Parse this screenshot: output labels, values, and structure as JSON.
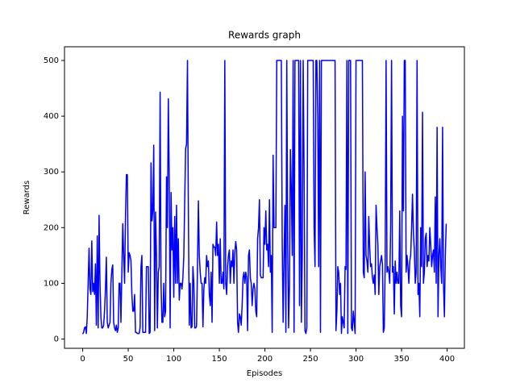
{
  "chart_data": {
    "type": "line",
    "title": "Rewards graph",
    "x_label": "Episodes",
    "y_label": "Rewards",
    "color": "#0000ff",
    "xlim": [
      -19.95,
      418.95
    ],
    "ylim": [
      -16.6,
      524.6
    ],
    "xticks": [
      0,
      50,
      100,
      150,
      200,
      250,
      300,
      350,
      400
    ],
    "yticks": [
      0,
      100,
      200,
      300,
      400,
      500
    ],
    "x": [
      0,
      1,
      2,
      3,
      4,
      5,
      6,
      7,
      8,
      9,
      10,
      11,
      12,
      13,
      14,
      15,
      16,
      17,
      18,
      19,
      20,
      21,
      22,
      23,
      24,
      25,
      26,
      27,
      28,
      29,
      30,
      31,
      32,
      33,
      34,
      35,
      36,
      37,
      38,
      39,
      40,
      41,
      42,
      43,
      44,
      45,
      46,
      47,
      48,
      49,
      50,
      51,
      52,
      53,
      54,
      55,
      56,
      57,
      58,
      59,
      60,
      61,
      62,
      63,
      64,
      65,
      66,
      67,
      68,
      69,
      70,
      71,
      72,
      73,
      74,
      75,
      76,
      77,
      78,
      79,
      80,
      81,
      82,
      83,
      84,
      85,
      86,
      87,
      88,
      89,
      90,
      91,
      92,
      93,
      94,
      95,
      96,
      97,
      98,
      99,
      100,
      101,
      102,
      103,
      104,
      105,
      106,
      107,
      108,
      109,
      110,
      111,
      112,
      113,
      114,
      115,
      116,
      117,
      118,
      119,
      120,
      121,
      122,
      123,
      124,
      125,
      126,
      127,
      128,
      129,
      130,
      131,
      132,
      133,
      134,
      135,
      136,
      137,
      138,
      139,
      140,
      141,
      142,
      143,
      144,
      145,
      146,
      147,
      148,
      149,
      150,
      151,
      152,
      153,
      154,
      155,
      156,
      157,
      158,
      159,
      160,
      161,
      162,
      163,
      164,
      165,
      166,
      167,
      168,
      169,
      170,
      171,
      172,
      173,
      174,
      175,
      176,
      177,
      178,
      179,
      180,
      181,
      182,
      183,
      184,
      185,
      186,
      187,
      188,
      189,
      190,
      191,
      192,
      193,
      194,
      195,
      196,
      197,
      198,
      199,
      200,
      201,
      202,
      203,
      204,
      205,
      206,
      207,
      208,
      209,
      210,
      211,
      212,
      213,
      214,
      215,
      216,
      217,
      218,
      219,
      220,
      221,
      222,
      223,
      224,
      225,
      226,
      227,
      228,
      229,
      230,
      231,
      232,
      233,
      234,
      235,
      236,
      237,
      238,
      239,
      240,
      241,
      242,
      243,
      244,
      245,
      246,
      247,
      248,
      249,
      250,
      251,
      252,
      253,
      254,
      255,
      256,
      257,
      258,
      259,
      260,
      261,
      262,
      263,
      264,
      265,
      266,
      267,
      268,
      269,
      270,
      271,
      272,
      273,
      274,
      275,
      276,
      277,
      278,
      279,
      280,
      281,
      282,
      283,
      284,
      285,
      286,
      287,
      288,
      289,
      290,
      291,
      292,
      293,
      294,
      295,
      296,
      297,
      298,
      299,
      300,
      301,
      302,
      303,
      304,
      305,
      306,
      307,
      308,
      309,
      310,
      311,
      312,
      313,
      314,
      315,
      316,
      317,
      318,
      319,
      320,
      321,
      322,
      323,
      324,
      325,
      326,
      327,
      328,
      329,
      330,
      331,
      332,
      333,
      334,
      335,
      336,
      337,
      338,
      339,
      340,
      341,
      342,
      343,
      344,
      345,
      346,
      347,
      348,
      349,
      350,
      351,
      352,
      353,
      354,
      355,
      356,
      357,
      358,
      359,
      360,
      361,
      362,
      363,
      364,
      365,
      366,
      367,
      368,
      369,
      370,
      371,
      372,
      373,
      374,
      375,
      376,
      377,
      378,
      379,
      380,
      381,
      382,
      383,
      384,
      385,
      386,
      387,
      388,
      389,
      390,
      391,
      392,
      393,
      394,
      395,
      396,
      397,
      398,
      399
    ],
    "values": [
      9,
      12,
      20,
      22,
      10,
      40,
      100,
      163,
      90,
      80,
      176,
      85,
      100,
      80,
      135,
      25,
      185,
      20,
      222,
      100,
      40,
      20,
      20,
      25,
      50,
      90,
      147,
      30,
      20,
      25,
      30,
      100,
      125,
      133,
      30,
      20,
      15,
      25,
      12,
      20,
      100,
      100,
      30,
      120,
      207,
      150,
      100,
      220,
      295,
      295,
      120,
      155,
      150,
      140,
      80,
      50,
      50,
      80,
      12,
      12,
      10,
      10,
      10,
      20,
      130,
      150,
      12,
      12,
      12,
      12,
      130,
      130,
      130,
      10,
      12,
      316,
      212,
      230,
      348,
      15,
      228,
      150,
      20,
      120,
      130,
      443,
      100,
      30,
      30,
      100,
      40,
      50,
      291,
      200,
      431,
      290,
      20,
      263,
      160,
      200,
      75,
      220,
      100,
      240,
      100,
      180,
      70,
      100,
      100,
      90,
      110,
      150,
      250,
      342,
      350,
      500,
      230,
      25,
      100,
      20,
      22,
      130,
      100,
      20,
      20,
      23,
      130,
      248,
      150,
      120,
      100,
      100,
      22,
      90,
      110,
      100,
      150,
      130,
      140,
      80,
      60,
      120,
      30,
      170,
      165,
      165,
      150,
      210,
      150,
      170,
      100,
      180,
      100,
      100,
      120,
      90,
      500,
      100,
      80,
      130,
      150,
      160,
      100,
      140,
      130,
      160,
      100,
      155,
      175,
      160,
      30,
      12,
      45,
      40,
      25,
      60,
      110,
      120,
      100,
      120,
      110,
      15,
      150,
      160,
      110,
      100,
      60,
      90,
      100,
      90,
      50,
      40,
      180,
      200,
      250,
      115,
      110,
      110,
      110,
      200,
      170,
      230,
      160,
      170,
      130,
      250,
      120,
      150,
      12,
      330,
      200,
      200,
      200,
      500,
      500,
      500,
      500,
      500,
      500,
      170,
      30,
      150,
      240,
      12,
      500,
      170,
      20,
      100,
      340,
      270,
      150,
      500,
      12,
      500,
      500,
      500,
      500,
      500,
      60,
      500,
      30,
      150,
      500,
      300,
      15,
      10,
      20,
      500,
      500,
      500,
      500,
      500,
      500,
      500,
      200,
      130,
      500,
      500,
      400,
      130,
      500,
      12,
      500,
      500,
      500,
      500,
      500,
      500,
      500,
      500,
      500,
      500,
      500,
      500,
      500,
      500,
      500,
      500,
      15,
      50,
      130,
      120,
      80,
      100,
      10,
      40,
      30,
      20,
      130,
      125,
      500,
      10,
      500,
      500,
      500,
      20,
      15,
      50,
      30,
      10,
      500,
      500,
      500,
      500,
      500,
      500,
      500,
      500,
      120,
      110,
      300,
      150,
      140,
      120,
      220,
      165,
      130,
      135,
      110,
      100,
      115,
      80,
      240,
      200,
      170,
      80,
      130,
      140,
      150,
      135,
      12,
      20,
      130,
      500,
      120,
      130,
      120,
      100,
      200,
      500,
      120,
      130,
      45,
      140,
      100,
      120,
      100,
      100,
      230,
      60,
      40,
      400,
      230,
      500,
      500,
      120,
      150,
      130,
      100,
      140,
      150,
      200,
      260,
      190,
      160,
      100,
      120,
      500,
      80,
      100,
      40,
      200,
      130,
      407,
      100,
      120,
      180,
      190,
      130,
      150,
      140,
      200,
      170,
      130,
      150,
      160,
      120,
      255,
      100,
      380,
      40,
      150,
      180,
      130,
      100,
      380,
      100,
      40,
      150,
      207
    ]
  }
}
